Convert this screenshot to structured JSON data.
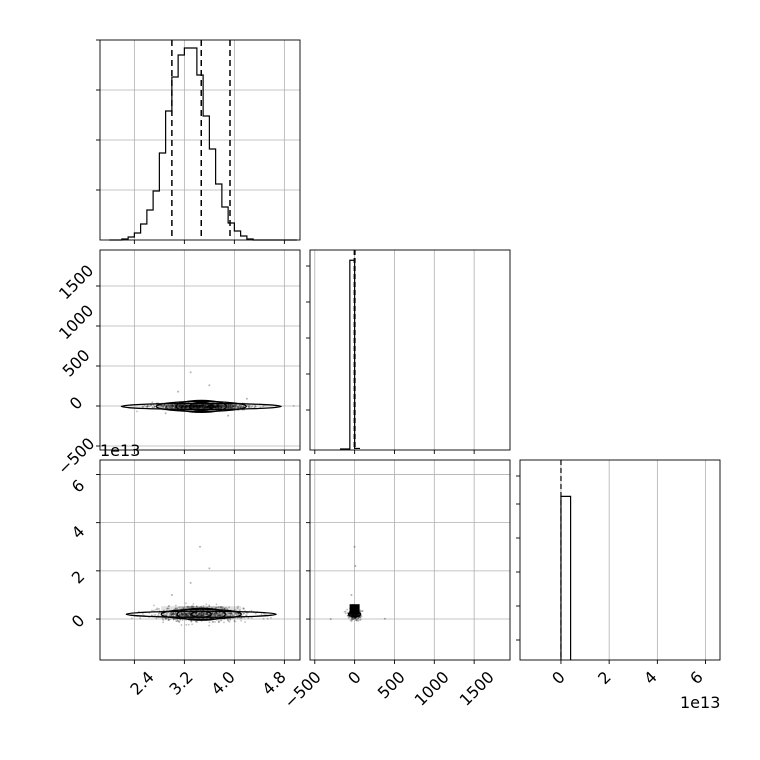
{
  "chart_data": [
    {
      "type": "histogram",
      "panel": "x0-marginal",
      "bins_x": [
        2.0,
        2.1,
        2.2,
        2.3,
        2.4,
        2.5,
        2.6,
        2.7,
        2.8,
        2.9,
        3.0,
        3.1,
        3.2,
        3.3,
        3.4,
        3.5,
        3.6,
        3.7,
        3.8,
        3.9,
        4.0,
        4.1,
        4.2,
        4.3,
        4.4,
        4.5,
        4.6,
        4.7,
        4.8,
        4.9,
        5.0
      ],
      "counts": [
        0,
        0,
        1,
        3,
        7,
        16,
        30,
        49,
        87,
        129,
        163,
        185,
        192,
        192,
        165,
        124,
        91,
        56,
        33,
        17,
        9,
        4,
        1,
        0,
        0,
        0,
        0,
        0,
        0,
        0
      ],
      "quantile_lines_x": [
        3.0,
        3.47,
        3.93
      ],
      "xlim": [
        1.85,
        5.05
      ],
      "ylim": [
        0,
        200
      ],
      "xticks": [],
      "grid": true
    },
    {
      "type": "scatter-density",
      "panel": "x1-vs-x0",
      "xlim": [
        1.85,
        5.05
      ],
      "ylim": [
        -550,
        1950
      ],
      "xticks": [],
      "yticks": [
        -500,
        0,
        500,
        1000,
        1500
      ],
      "center": [
        3.47,
        -5
      ],
      "contour_half_widths_x": [
        0.9,
        0.55,
        0.3
      ],
      "contour_half_heights_y": [
        14,
        24,
        18
      ],
      "grid": true
    },
    {
      "type": "histogram",
      "panel": "x1-marginal",
      "bins_x": [
        -60,
        0,
        60
      ],
      "counts": [
        1850,
        15
      ],
      "quantile_lines_x": [
        -5,
        0,
        5
      ],
      "xlim": [
        -560,
        1950
      ],
      "ylim": [
        0,
        1950
      ],
      "xticks": [],
      "grid": true
    },
    {
      "type": "scatter-density",
      "panel": "x2-vs-x0",
      "xlim": [
        1.85,
        5.05
      ],
      "ylim": [
        -17000000000000.0,
        66000000000000.0
      ],
      "xticks": [
        2.4,
        3.2,
        4.0,
        4.8
      ],
      "yticks": [
        0,
        20000000000000.0,
        40000000000000.0,
        60000000000000.0
      ],
      "center": [
        3.47,
        2000000000000.0
      ],
      "offset_label": "1e13",
      "grid": true
    },
    {
      "type": "scatter-density",
      "panel": "x2-vs-x1",
      "xlim": [
        -560,
        1950
      ],
      "ylim": [
        -17000000000000.0,
        66000000000000.0
      ],
      "xticks": [
        -500,
        0,
        500,
        1000,
        1500
      ],
      "yticks": [],
      "center": [
        0,
        2000000000000.0
      ],
      "grid": true
    },
    {
      "type": "histogram",
      "panel": "x2-marginal",
      "bins_x": [
        0,
        4000000000000.0
      ],
      "counts": [
        1800
      ],
      "quantile_lines_x": [
        0
      ],
      "xlim": [
        -17000000000000.0,
        66000000000000.0
      ],
      "ylim": [
        0,
        2200
      ],
      "xticks": [
        0,
        20000000000000.0,
        40000000000000.0,
        60000000000000.0
      ],
      "offset_label": "1e13",
      "grid": true
    }
  ],
  "tick_labels": {
    "x0": [
      "2.4",
      "3.2",
      "4.0",
      "4.8"
    ],
    "x1_y": [
      "−500",
      "0",
      "500",
      "1000",
      "1500"
    ],
    "x1_x": [
      "−500",
      "0",
      "500",
      "1000",
      "1500"
    ],
    "x2_y": [
      "0",
      "2",
      "4",
      "6"
    ],
    "x2_x": [
      "0",
      "2",
      "4",
      "6"
    ]
  },
  "offset_labels": {
    "x2_y": "1e13",
    "x2_x": "1e13"
  },
  "colors": {
    "line": "#000000",
    "grid": "#b0b0b0",
    "background": "#ffffff"
  }
}
